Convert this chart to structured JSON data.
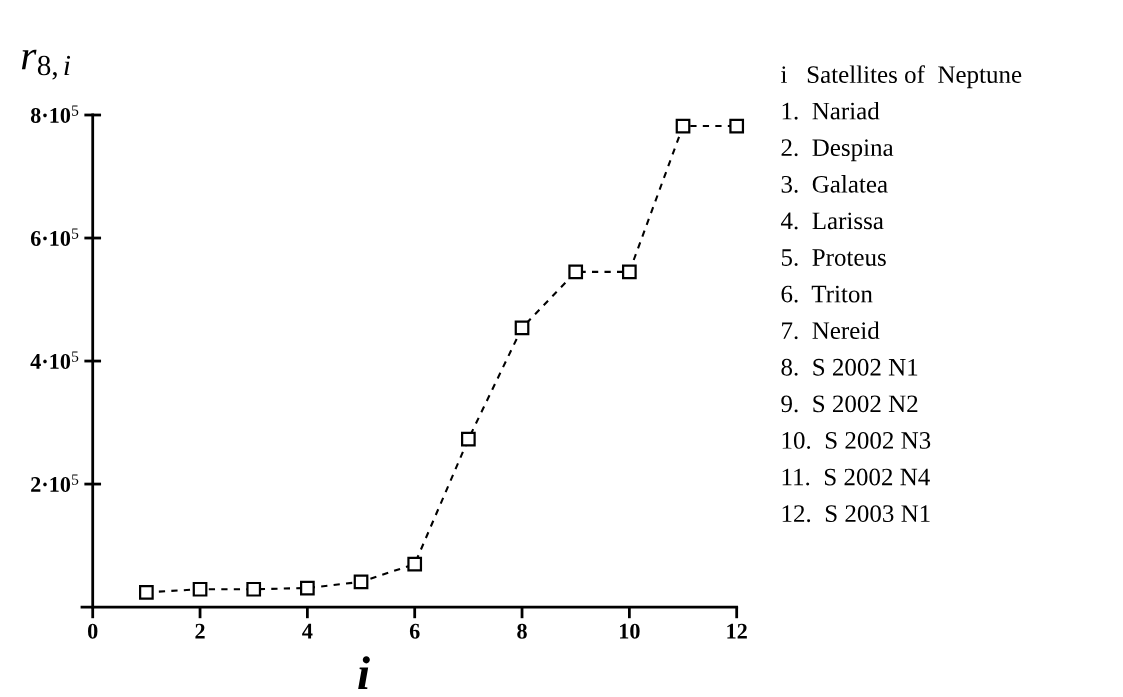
{
  "chart_data": {
    "type": "line",
    "x": [
      1,
      2,
      3,
      4,
      5,
      6,
      7,
      8,
      9,
      10,
      11,
      12
    ],
    "series": [
      {
        "color": "#000000",
        "values": [
          24000,
          29000,
          29000,
          31000,
          41000,
          70000,
          273000,
          454000,
          545000,
          545000,
          782000,
          782000
        ]
      }
    ],
    "xlabel": "i",
    "ylabel": "r$_{8,i}$",
    "xlim": [
      -0.2,
      12
    ],
    "ylim": [
      0,
      800000
    ],
    "xticks": [
      0,
      2,
      4,
      6,
      8,
      10,
      12
    ],
    "yticks": [
      {
        "value": 200000,
        "label": "2·10$^{5}$"
      },
      {
        "value": 400000,
        "label": "4·10$^{5}$"
      },
      {
        "value": 600000,
        "label": "6·10$^{5}$"
      },
      {
        "value": 800000,
        "label": "8·10$^{5}$"
      }
    ],
    "marker": "square",
    "line_style": "dashed",
    "grid": false,
    "annotations": [
      "i   Satellites of  Neptune",
      "1.  Nariad",
      "2.  Despina",
      "3.  Galatea",
      "4.  Larissa",
      "5.  Proteus",
      "6.  Triton",
      "7.  Nereid",
      "8.  S 2002 N1",
      "9.  S 2002 N2",
      "10.  S 2002 N3",
      "11.  S 2002 N4",
      "12.  S 2003 N1"
    ]
  }
}
